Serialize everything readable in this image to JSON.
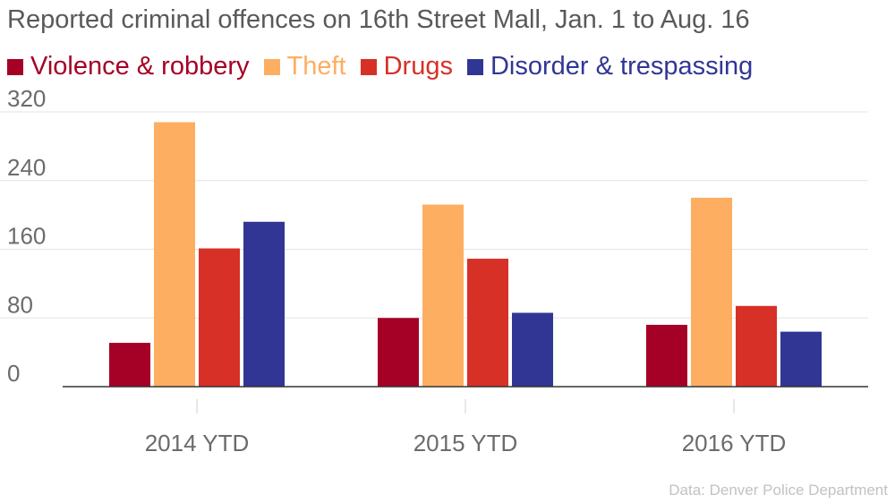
{
  "chart_data": {
    "type": "bar",
    "title": "Reported criminal offences on 16th Street Mall, Jan. 1 to Aug. 16",
    "xlabel": "",
    "ylabel": "",
    "categories": [
      "2014 YTD",
      "2015 YTD",
      "2016 YTD"
    ],
    "series": [
      {
        "name": "Violence & robbery",
        "color": "#a50026",
        "values": [
          51,
          80,
          72
        ]
      },
      {
        "name": "Theft",
        "color": "#fdae61",
        "values": [
          308,
          212,
          220
        ]
      },
      {
        "name": "Drugs",
        "color": "#d73027",
        "values": [
          161,
          149,
          94
        ]
      },
      {
        "name": "Disorder & trespassing",
        "color": "#313695",
        "values": [
          192,
          86,
          64
        ]
      }
    ],
    "ylim": [
      0,
      320
    ],
    "yticks": [
      0,
      80,
      160,
      240,
      320
    ],
    "grid": true,
    "legend_position": "top-left",
    "source": "Data: Denver Police Department"
  }
}
